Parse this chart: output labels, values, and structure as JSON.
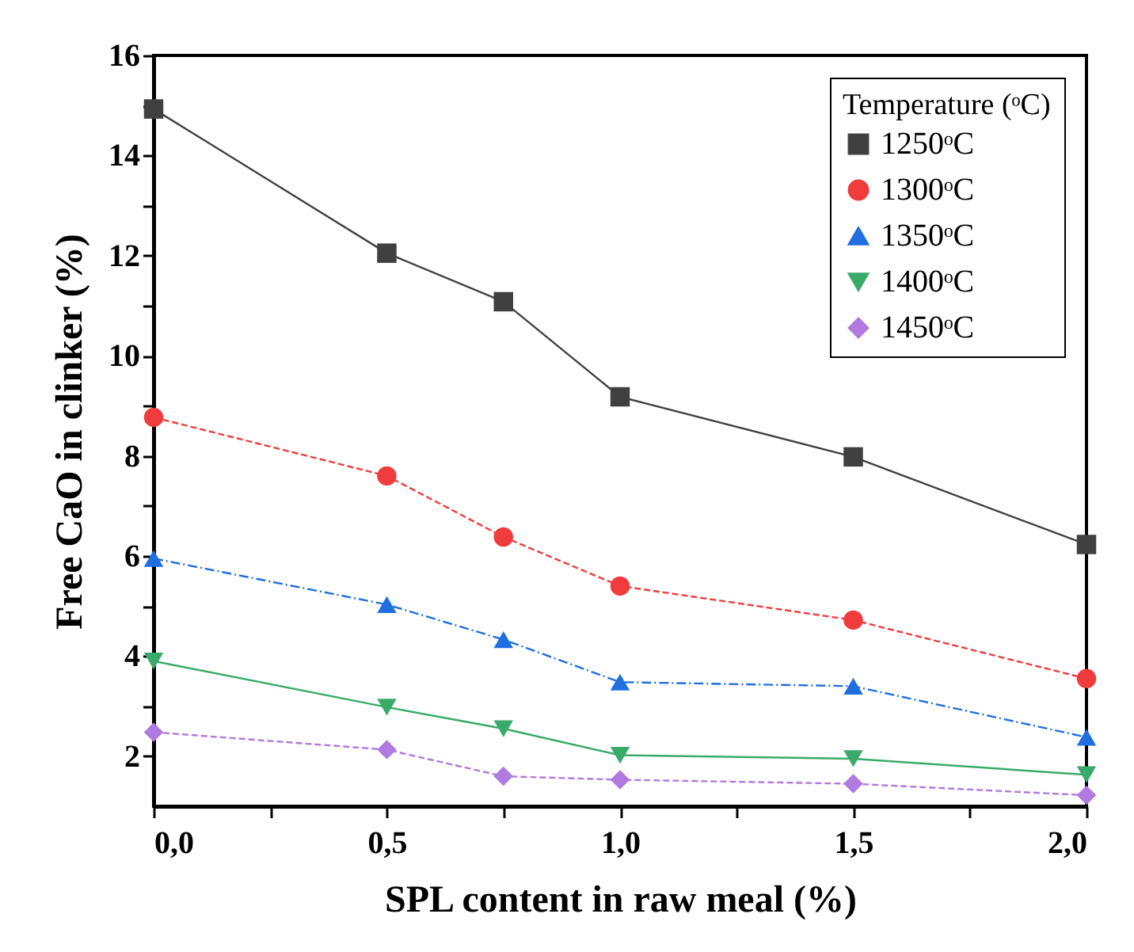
{
  "chart_data": {
    "type": "line",
    "xlabel": "SPL content in raw meal (%)",
    "ylabel": "Free CaO in clinker (%)",
    "legend_title": "Temperature (ᵒC)",
    "legend": "top right",
    "grid": false,
    "x": [
      0,
      0.5,
      0.75,
      1,
      1.5,
      2
    ],
    "xlim": [
      0,
      2
    ],
    "xticks": [
      {
        "value": 0,
        "label": "0,0"
      },
      {
        "value": 0.25,
        "label": null
      },
      {
        "value": 0.5,
        "label": "0,5"
      },
      {
        "value": 0.75,
        "label": null
      },
      {
        "value": 1,
        "label": "1,0"
      },
      {
        "value": 1.25,
        "label": null
      },
      {
        "value": 1.5,
        "label": "1,5"
      },
      {
        "value": 1.75,
        "label": null
      },
      {
        "value": 2,
        "label": "2,0"
      }
    ],
    "ylim": [
      1,
      16
    ],
    "yticks": [
      2,
      {
        "value": 3,
        "label": null
      },
      4,
      {
        "value": 5,
        "label": null
      },
      6,
      {
        "value": 7,
        "label": null
      },
      8,
      {
        "value": 9,
        "label": null
      },
      10,
      {
        "value": 11,
        "label": null
      },
      12,
      {
        "value": 13,
        "label": null
      },
      14,
      {
        "value": 15,
        "label": null
      },
      16
    ],
    "series": [
      {
        "name": "1250ᵒC",
        "color": "#404040",
        "marker": "square",
        "line_style": "solid",
        "values": [
          14.93,
          12.05,
          11.08,
          9.18,
          7.98,
          6.23
        ]
      },
      {
        "name": "1300ᵒC",
        "color": "#f03c3c",
        "marker": "circle",
        "line_style": "dashed",
        "values": [
          8.77,
          7.6,
          6.38,
          5.4,
          4.72,
          3.55
        ]
      },
      {
        "name": "1350ᵒC",
        "color": "#1f6fe0",
        "marker": "triangle",
        "line_style": "dashdot",
        "values": [
          5.95,
          5.03,
          4.33,
          3.48,
          3.4,
          2.38
        ]
      },
      {
        "name": "1400ᵒC",
        "color": "#3aaa6a",
        "marker": "triangle-down",
        "line_style": "solid",
        "values": [
          3.9,
          2.98,
          2.55,
          2.02,
          1.95,
          1.63
        ]
      },
      {
        "name": "1450ᵒC",
        "color": "#b07ae0",
        "marker": "diamond",
        "line_style": "dashed",
        "values": [
          2.48,
          2.13,
          1.6,
          1.53,
          1.45,
          1.22
        ]
      }
    ]
  }
}
